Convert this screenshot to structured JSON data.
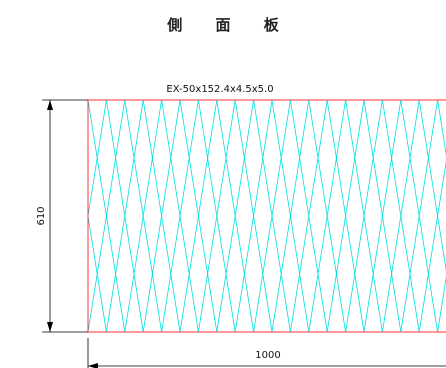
{
  "title": "側 面 板",
  "spec_label": "EX-50x152.4x4.5x5.0",
  "height_dimension": "610",
  "width_dimension": "1000",
  "colors": {
    "panel_outline": "#ff3333",
    "mesh": "#00e0e0",
    "dimension_lines": "#000000"
  }
}
